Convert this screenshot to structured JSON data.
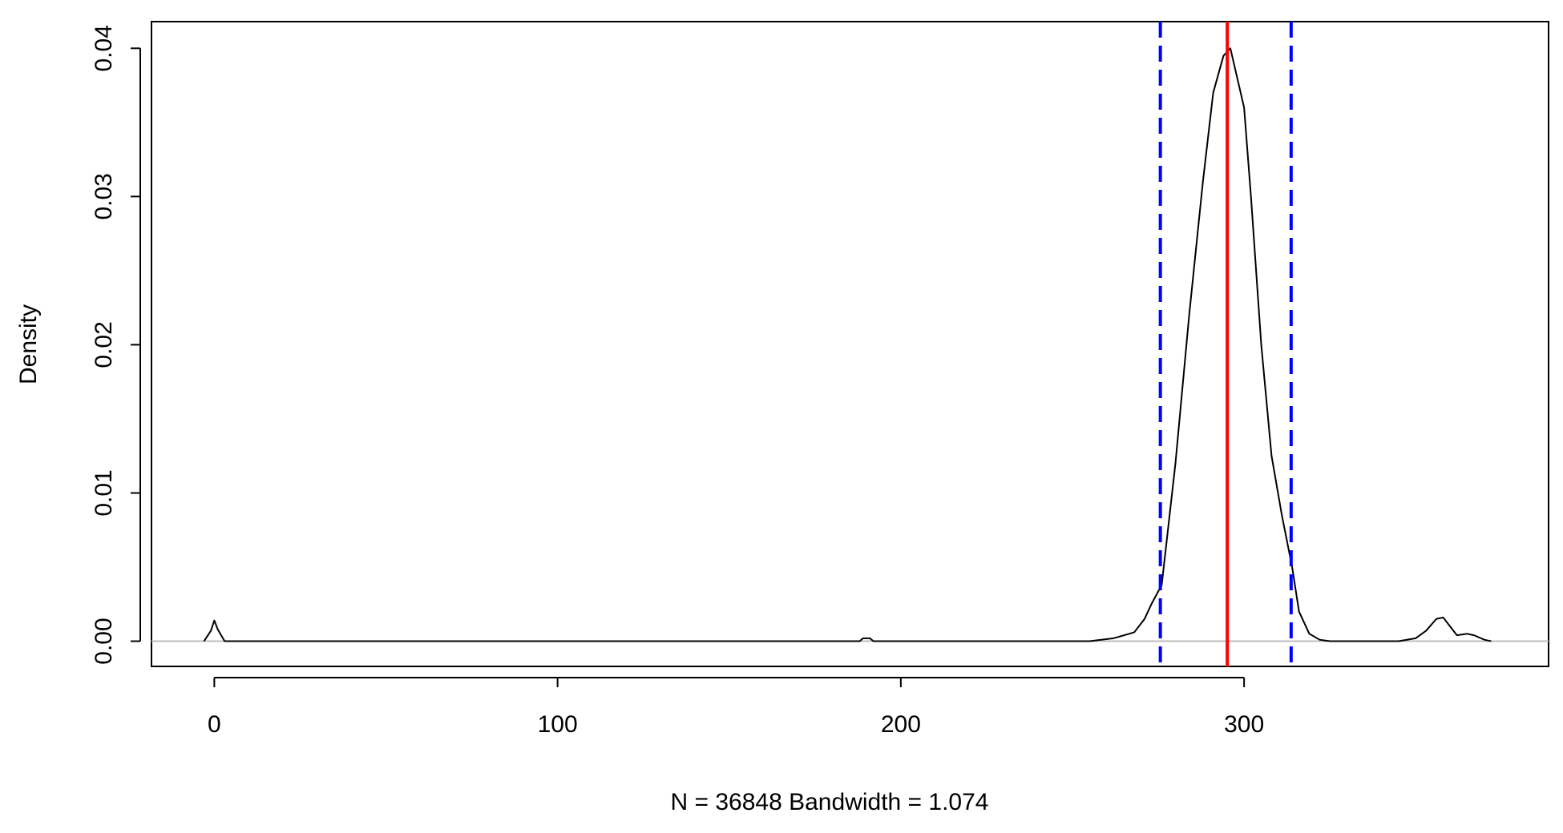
{
  "chart_data": {
    "type": "line",
    "x_label": "N = 36848   Bandwidth = 1.074",
    "y_label": "Density",
    "x": [
      -3,
      -1,
      0,
      1,
      3,
      50,
      188,
      189,
      191,
      192,
      255,
      262,
      268,
      271,
      273,
      276,
      280,
      284,
      288,
      291,
      294,
      296,
      298,
      300,
      302,
      305,
      308,
      311,
      314,
      316,
      319,
      322,
      325,
      345,
      350,
      353,
      356,
      358,
      360,
      362,
      365,
      367,
      370,
      372
    ],
    "series": [
      {
        "color": "#000000",
        "values": [
          0,
          0.0007,
          0.0014,
          0.0008,
          0,
          0,
          0,
          0.0002,
          0.0002,
          0,
          0,
          0.0002,
          0.0006,
          0.0015,
          0.0025,
          0.0038,
          0.012,
          0.022,
          0.031,
          0.037,
          0.0395,
          0.04,
          0.038,
          0.036,
          0.03,
          0.02,
          0.0125,
          0.0085,
          0.005,
          0.002,
          0.0005,
          0.0001,
          0,
          0,
          0.0002,
          0.0007,
          0.0015,
          0.0016,
          0.001,
          0.0004,
          0.0005,
          0.0004,
          0.0001,
          0
        ]
      }
    ],
    "reference_lines": [
      {
        "x": 295.1,
        "color": "#ff0000",
        "dashed": false
      },
      {
        "x": 275.6,
        "color": "#0000ff",
        "dashed": true
      },
      {
        "x": 313.7,
        "color": "#0000ff",
        "dashed": true
      }
    ],
    "xlim": [
      -18.3,
      388.7
    ],
    "ylim": [
      -0.0017,
      0.0418
    ],
    "xticks": [
      0,
      100,
      200,
      300
    ],
    "yticks": [
      {
        "value": 0,
        "label": "0.00"
      },
      0.01,
      0.02,
      0.03,
      0.04
    ],
    "zero_line_color": "#bebebe"
  }
}
